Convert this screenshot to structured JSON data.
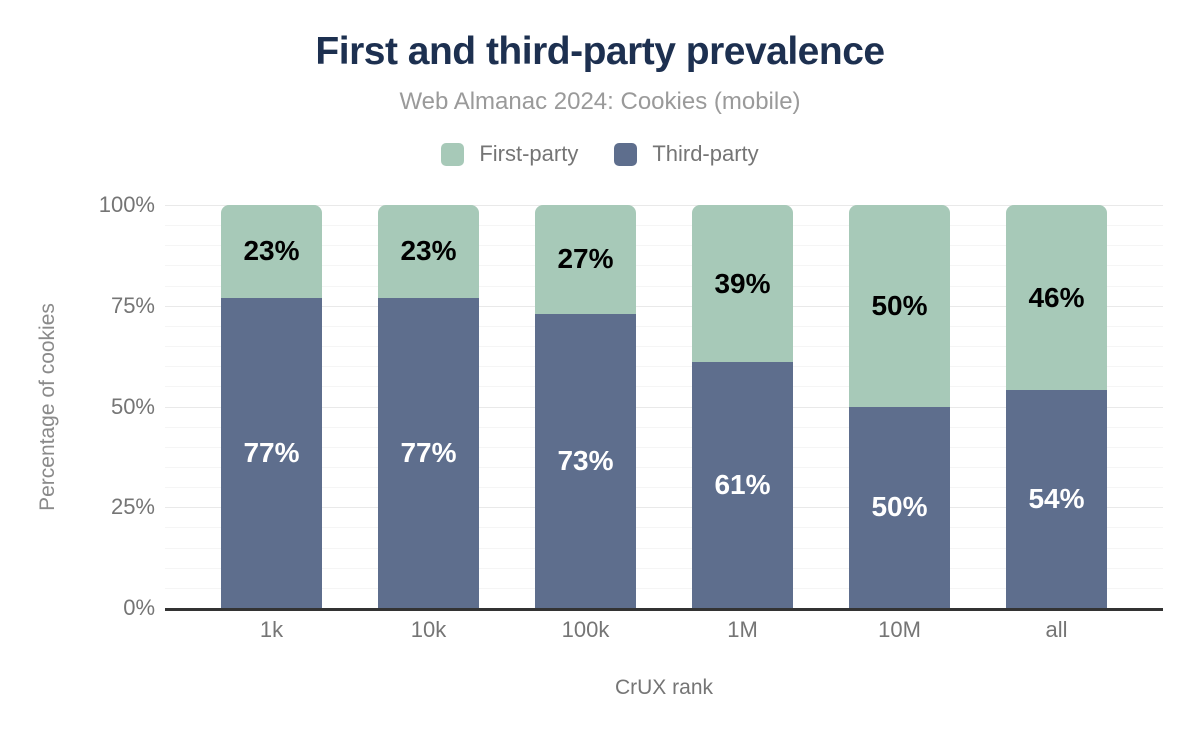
{
  "header": {
    "title": "First and third-party prevalence",
    "subtitle": "Web Almanac 2024: Cookies (mobile)"
  },
  "legend": {
    "items": [
      {
        "label": "First-party",
        "color": "#a7c9b8"
      },
      {
        "label": "Third-party",
        "color": "#5e6e8d"
      }
    ]
  },
  "colors": {
    "first_party": "#a7c9b8",
    "third_party": "#5e6e8d",
    "title": "#1d3050",
    "subtitle": "#9a9a9a",
    "axis_text": "#757575",
    "axis_muted": "#8a8a8a",
    "baseline": "#333333",
    "gridline_minor": "#f5f5f5",
    "gridline_major": "#e9e9e9",
    "label_on_first": "#000000",
    "label_on_third": "#ffffff"
  },
  "chart_data": {
    "type": "bar",
    "stacked": true,
    "title": "First and third-party prevalence",
    "subtitle": "Web Almanac 2024: Cookies (mobile)",
    "categories": [
      "1k",
      "10k",
      "100k",
      "1M",
      "10M",
      "all"
    ],
    "series": [
      {
        "name": "First-party",
        "color": "#a7c9b8",
        "label_color": "#000000",
        "values": [
          23,
          23,
          27,
          39,
          50,
          46
        ]
      },
      {
        "name": "Third-party",
        "color": "#5e6e8d",
        "label_color": "#ffffff",
        "values": [
          77,
          77,
          73,
          61,
          50,
          54
        ]
      }
    ],
    "value_label_format": "{v}%",
    "xlabel": "CrUX rank",
    "ylabel": "Percentage of cookies",
    "ylim": [
      0,
      100
    ],
    "yticks": [
      0,
      25,
      50,
      75,
      100
    ],
    "ytick_format": "{v}%",
    "grid": {
      "horizontal": true,
      "minor_step_percent": 5,
      "major_step_percent": 25
    },
    "legend_position": "top",
    "segment_order": "first-party on top, third-party on bottom"
  }
}
